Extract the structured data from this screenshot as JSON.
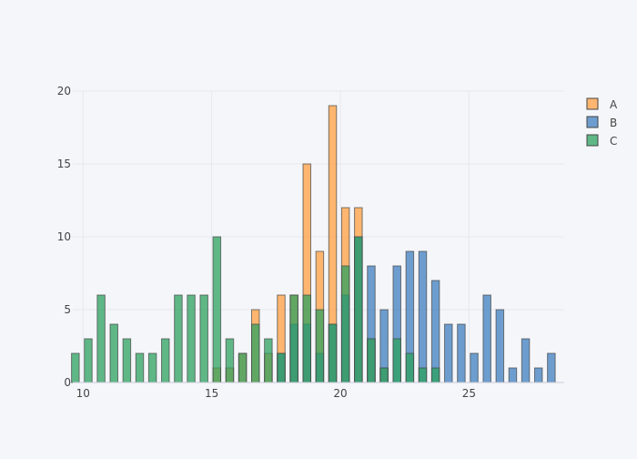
{
  "chart_data": {
    "type": "bar",
    "title": "",
    "xlabel": "",
    "ylabel": "",
    "xlim": [
      9.6,
      28.7
    ],
    "ylim": [
      0,
      20
    ],
    "x_ticks": [
      10,
      15,
      20,
      25
    ],
    "y_ticks": [
      0,
      5,
      10,
      15,
      20
    ],
    "grid": true,
    "legend_position": "top-right",
    "bin_width": 0.3,
    "series": [
      {
        "name": "A",
        "color": "#ff9f40",
        "points": [
          {
            "x": 15.2,
            "y": 1
          },
          {
            "x": 15.7,
            "y": 1
          },
          {
            "x": 16.2,
            "y": 2
          },
          {
            "x": 16.7,
            "y": 5
          },
          {
            "x": 17.2,
            "y": 2
          },
          {
            "x": 17.7,
            "y": 6
          },
          {
            "x": 18.2,
            "y": 6
          },
          {
            "x": 18.7,
            "y": 15
          },
          {
            "x": 19.2,
            "y": 9
          },
          {
            "x": 19.7,
            "y": 19
          },
          {
            "x": 20.2,
            "y": 12
          },
          {
            "x": 20.7,
            "y": 12
          },
          {
            "x": 21.2,
            "y": 3
          },
          {
            "x": 21.7,
            "y": 1
          }
        ]
      },
      {
        "name": "B",
        "color": "#3f7fbf",
        "points": [
          {
            "x": 17.7,
            "y": 2
          },
          {
            "x": 18.2,
            "y": 4
          },
          {
            "x": 18.7,
            "y": 4
          },
          {
            "x": 19.2,
            "y": 2
          },
          {
            "x": 19.7,
            "y": 4
          },
          {
            "x": 20.2,
            "y": 6
          },
          {
            "x": 20.7,
            "y": 10
          },
          {
            "x": 21.2,
            "y": 8
          },
          {
            "x": 21.7,
            "y": 5
          },
          {
            "x": 22.2,
            "y": 8
          },
          {
            "x": 22.7,
            "y": 9
          },
          {
            "x": 23.2,
            "y": 9
          },
          {
            "x": 23.7,
            "y": 7
          },
          {
            "x": 24.2,
            "y": 4
          },
          {
            "x": 24.7,
            "y": 4
          },
          {
            "x": 25.2,
            "y": 2
          },
          {
            "x": 25.7,
            "y": 6
          },
          {
            "x": 26.2,
            "y": 5
          },
          {
            "x": 26.7,
            "y": 1
          },
          {
            "x": 27.2,
            "y": 3
          },
          {
            "x": 27.7,
            "y": 1
          },
          {
            "x": 28.2,
            "y": 2
          }
        ]
      },
      {
        "name": "C",
        "color": "#2ca25f",
        "points": [
          {
            "x": 9.7,
            "y": 2
          },
          {
            "x": 10.2,
            "y": 3
          },
          {
            "x": 10.7,
            "y": 6
          },
          {
            "x": 11.2,
            "y": 4
          },
          {
            "x": 11.7,
            "y": 3
          },
          {
            "x": 12.2,
            "y": 2
          },
          {
            "x": 12.7,
            "y": 2
          },
          {
            "x": 13.2,
            "y": 3
          },
          {
            "x": 13.7,
            "y": 6
          },
          {
            "x": 14.2,
            "y": 6
          },
          {
            "x": 14.7,
            "y": 6
          },
          {
            "x": 15.2,
            "y": 10
          },
          {
            "x": 15.7,
            "y": 3
          },
          {
            "x": 16.2,
            "y": 2
          },
          {
            "x": 16.7,
            "y": 4
          },
          {
            "x": 17.2,
            "y": 3
          },
          {
            "x": 17.7,
            "y": 2
          },
          {
            "x": 18.2,
            "y": 6
          },
          {
            "x": 18.7,
            "y": 6
          },
          {
            "x": 19.2,
            "y": 5
          },
          {
            "x": 19.7,
            "y": 4
          },
          {
            "x": 20.2,
            "y": 8
          },
          {
            "x": 20.7,
            "y": 10
          },
          {
            "x": 21.2,
            "y": 3
          },
          {
            "x": 21.7,
            "y": 1
          },
          {
            "x": 22.2,
            "y": 3
          },
          {
            "x": 22.7,
            "y": 2
          },
          {
            "x": 23.2,
            "y": 1
          },
          {
            "x": 23.7,
            "y": 1
          }
        ]
      }
    ]
  }
}
